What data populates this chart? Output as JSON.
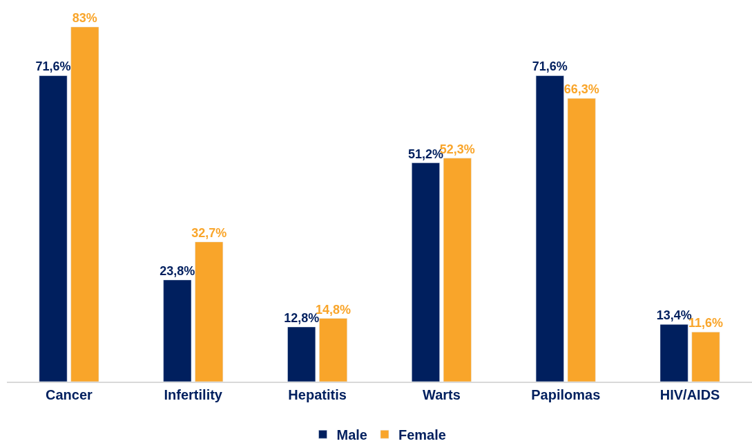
{
  "chart_data": {
    "type": "bar",
    "categories": [
      "Cancer",
      "Infertility",
      "Hepatitis",
      "Warts",
      "Papilomas",
      "HIV/AIDS"
    ],
    "series": [
      {
        "name": "Male",
        "color": "#001f5e",
        "values": [
          71.6,
          23.8,
          12.8,
          51.2,
          71.6,
          13.4
        ],
        "value_labels": [
          "71,6%",
          "23,8%",
          "12,8%",
          "51,2%",
          "71,6%",
          "13,4%"
        ]
      },
      {
        "name": "Female",
        "color": "#f9a52a",
        "values": [
          83,
          32.7,
          14.8,
          52.3,
          66.3,
          11.6
        ],
        "value_labels": [
          "83%",
          "32,7%",
          "14,8%",
          "52,3%",
          "66,3%",
          "11,6%"
        ]
      }
    ],
    "tick_labels": "x",
    "legend": "bottom"
  }
}
